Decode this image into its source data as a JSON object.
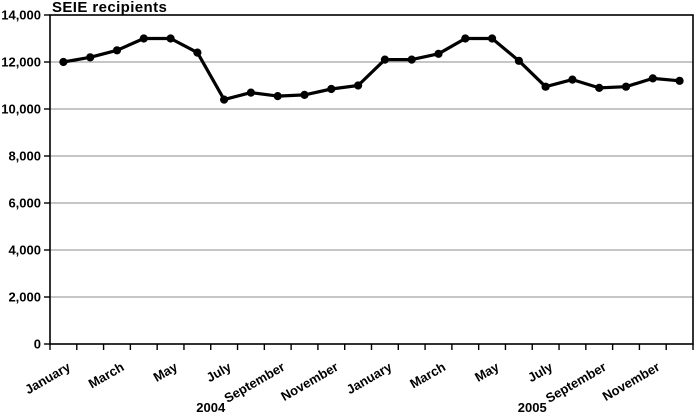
{
  "chart_data": {
    "type": "line",
    "title": "SEIE recipients",
    "legend": "none",
    "grid": "horizontal",
    "x_axis": {
      "years": [
        "2004",
        "2005"
      ],
      "months_per_year": 12,
      "labeled_months": [
        "January",
        "March",
        "May",
        "July",
        "September",
        "November"
      ],
      "tick_interval": "monthly"
    },
    "y_axis": {
      "min": 0,
      "max": 14000,
      "tick_step": 2000,
      "tick_labels": [
        "0",
        "2,000",
        "4,000",
        "6,000",
        "8,000",
        "10,000",
        "12,000",
        "14,000"
      ]
    },
    "series": [
      {
        "name": "SEIE recipients",
        "year_2004": [
          12000,
          12200,
          12500,
          13000,
          13000,
          12400,
          10400,
          10700,
          10550,
          10600,
          10850,
          11000
        ],
        "year_2005": [
          12100,
          12100,
          12350,
          13000,
          13000,
          12050,
          10950,
          11250,
          10900,
          10950,
          11300,
          11200
        ]
      }
    ],
    "style": {
      "line_color": "#000000",
      "marker": "filled-circle",
      "marker_color": "#000000",
      "grid_color": "#8c8c8c",
      "axis_color": "#000000",
      "background": "#ffffff"
    }
  }
}
